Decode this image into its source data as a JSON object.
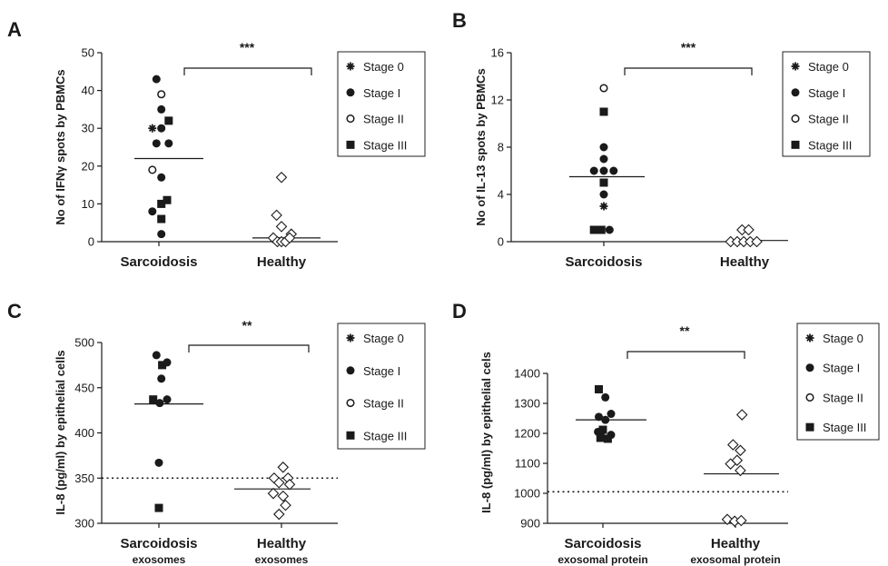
{
  "chart_data": [
    {
      "panel": "A",
      "type": "scatter",
      "ylabel": "No of IFNγ spots by PBMCs",
      "ylim": [
        0,
        50
      ],
      "yticks": [
        0,
        10,
        20,
        30,
        40,
        50
      ],
      "categories": [
        {
          "label": "Sarcoidosis",
          "sub": ""
        },
        {
          "label": "Healthy",
          "sub": ""
        }
      ],
      "significance": "***",
      "legend": [
        "Stage 0",
        "Stage I",
        "Stage II",
        "Stage III"
      ],
      "groups": [
        {
          "median": 22,
          "points": [
            {
              "stage": 1,
              "v": 43,
              "o": -0.3
            },
            {
              "stage": 2,
              "v": 39,
              "o": 0.3
            },
            {
              "stage": 1,
              "v": 35,
              "o": 0.3
            },
            {
              "stage": 3,
              "v": 32,
              "o": 1.2
            },
            {
              "stage": 0,
              "v": 30,
              "o": -0.8
            },
            {
              "stage": 1,
              "v": 30,
              "o": 0.3
            },
            {
              "stage": 1,
              "v": 26,
              "o": -0.3
            },
            {
              "stage": 1,
              "v": 26,
              "o": 1.2
            },
            {
              "stage": 2,
              "v": 19,
              "o": -0.8
            },
            {
              "stage": 1,
              "v": 17,
              "o": 0.3
            },
            {
              "stage": 3,
              "v": 11,
              "o": 1.0
            },
            {
              "stage": 3,
              "v": 10,
              "o": 0.3
            },
            {
              "stage": 1,
              "v": 8,
              "o": -0.8
            },
            {
              "stage": 3,
              "v": 6,
              "o": 0.3
            },
            {
              "stage": 1,
              "v": 2,
              "o": 0.3
            }
          ]
        },
        {
          "median": 1,
          "points": [
            {
              "stage": 4,
              "v": 17,
              "o": 0
            },
            {
              "stage": 4,
              "v": 7,
              "o": -0.6
            },
            {
              "stage": 4,
              "v": 4,
              "o": 0
            },
            {
              "stage": 4,
              "v": 2,
              "o": 1.2
            },
            {
              "stage": 4,
              "v": 1,
              "o": -1.0
            },
            {
              "stage": 4,
              "v": 0,
              "o": -0.5
            },
            {
              "stage": 4,
              "v": 0,
              "o": 0
            },
            {
              "stage": 4,
              "v": 0,
              "o": 0.5
            },
            {
              "stage": 4,
              "v": 1,
              "o": 1.0
            }
          ]
        }
      ]
    },
    {
      "panel": "B",
      "type": "scatter",
      "ylabel": "No of IL-13 spots by PBMCs",
      "ylim": [
        0,
        16
      ],
      "yticks": [
        0,
        4,
        8,
        12,
        16
      ],
      "categories": [
        {
          "label": "Sarcoidosis",
          "sub": ""
        },
        {
          "label": "Healthy",
          "sub": ""
        }
      ],
      "significance": "***",
      "legend": [
        "Stage 0",
        "Stage I",
        "Stage II",
        "Stage III"
      ],
      "groups": [
        {
          "median": 5.5,
          "points": [
            {
              "stage": 2,
              "v": 13,
              "o": 0
            },
            {
              "stage": 3,
              "v": 11,
              "o": 0
            },
            {
              "stage": 1,
              "v": 8,
              "o": 0
            },
            {
              "stage": 1,
              "v": 7,
              "o": 0
            },
            {
              "stage": 1,
              "v": 6,
              "o": -1.2
            },
            {
              "stage": 1,
              "v": 6,
              "o": 0
            },
            {
              "stage": 1,
              "v": 6,
              "o": 1.2
            },
            {
              "stage": 3,
              "v": 5,
              "o": 0
            },
            {
              "stage": 1,
              "v": 4,
              "o": 0
            },
            {
              "stage": 0,
              "v": 3,
              "o": 0
            },
            {
              "stage": 3,
              "v": 1,
              "o": -1.2
            },
            {
              "stage": 3,
              "v": 1,
              "o": -0.3
            },
            {
              "stage": 1,
              "v": 1,
              "o": 0.7
            }
          ]
        },
        {
          "median": 0.1,
          "points": [
            {
              "stage": 4,
              "v": 1,
              "o": -0.3
            },
            {
              "stage": 4,
              "v": 1,
              "o": 0.5
            },
            {
              "stage": 4,
              "v": 0,
              "o": -1.7
            },
            {
              "stage": 4,
              "v": 0,
              "o": -0.9
            },
            {
              "stage": 4,
              "v": 0,
              "o": -0.1
            },
            {
              "stage": 4,
              "v": 0,
              "o": 0.7
            },
            {
              "stage": 4,
              "v": 0,
              "o": 1.5
            }
          ]
        }
      ]
    },
    {
      "panel": "C",
      "type": "scatter",
      "ylabel": "IL-8 (pg/ml) by epithelial cells",
      "ylim": [
        300,
        500
      ],
      "yticks": [
        300,
        350,
        400,
        450,
        500
      ],
      "dotted": 350,
      "categories": [
        {
          "label": "Sarcoidosis",
          "sub": "exosomes"
        },
        {
          "label": "Healthy",
          "sub": "exosomes"
        }
      ],
      "significance": "**",
      "legend": [
        "Stage 0",
        "Stage I",
        "Stage II",
        "Stage III"
      ],
      "groups": [
        {
          "median": 432,
          "points": [
            {
              "stage": 1,
              "v": 486,
              "o": -0.3
            },
            {
              "stage": 1,
              "v": 478,
              "o": 1.0
            },
            {
              "stage": 3,
              "v": 475,
              "o": 0.4
            },
            {
              "stage": 1,
              "v": 460,
              "o": 0.3
            },
            {
              "stage": 3,
              "v": 437,
              "o": -0.7
            },
            {
              "stage": 1,
              "v": 433,
              "o": 0.1
            },
            {
              "stage": 1,
              "v": 437,
              "o": 1.0
            },
            {
              "stage": 1,
              "v": 367,
              "o": 0
            },
            {
              "stage": 3,
              "v": 317,
              "o": 0
            }
          ]
        },
        {
          "median": 338,
          "points": [
            {
              "stage": 4,
              "v": 362,
              "o": 0.2
            },
            {
              "stage": 4,
              "v": 350,
              "o": -0.9
            },
            {
              "stage": 4,
              "v": 350,
              "o": 0.8
            },
            {
              "stage": 4,
              "v": 345,
              "o": -0.3
            },
            {
              "stage": 4,
              "v": 343,
              "o": 1.0
            },
            {
              "stage": 4,
              "v": 333,
              "o": -1.0
            },
            {
              "stage": 4,
              "v": 330,
              "o": 0.2
            },
            {
              "stage": 4,
              "v": 320,
              "o": 0.5
            },
            {
              "stage": 4,
              "v": 310,
              "o": -0.3
            }
          ]
        }
      ]
    },
    {
      "panel": "D",
      "type": "scatter",
      "ylabel": "IL-8 (pg/ml) by epithelial cels",
      "ylim": [
        900,
        1400
      ],
      "yticks": [
        900,
        1000,
        1100,
        1200,
        1300,
        1400
      ],
      "dotted": 1005,
      "categories": [
        {
          "label": "Sarcoidosis",
          "sub": "exosomal protein"
        },
        {
          "label": "Healthy",
          "sub": "exosomal protein"
        }
      ],
      "significance": "**",
      "legend": [
        "Stage 0",
        "Stage I",
        "Stage II",
        "Stage III"
      ],
      "groups": [
        {
          "median": 1245,
          "points": [
            {
              "stage": 3,
              "v": 1347,
              "o": -0.5
            },
            {
              "stage": 1,
              "v": 1320,
              "o": 0.3
            },
            {
              "stage": 1,
              "v": 1265,
              "o": 1.0
            },
            {
              "stage": 1,
              "v": 1255,
              "o": -0.5
            },
            {
              "stage": 1,
              "v": 1245,
              "o": 0.3
            },
            {
              "stage": 3,
              "v": 1212,
              "o": 0
            },
            {
              "stage": 1,
              "v": 1205,
              "o": -0.6
            },
            {
              "stage": 1,
              "v": 1195,
              "o": 1.0
            },
            {
              "stage": 3,
              "v": 1185,
              "o": -0.3
            },
            {
              "stage": 3,
              "v": 1182,
              "o": 0.6
            }
          ]
        },
        {
          "median": 1065,
          "points": [
            {
              "stage": 4,
              "v": 1262,
              "o": 0.8
            },
            {
              "stage": 4,
              "v": 1162,
              "o": -0.3
            },
            {
              "stage": 4,
              "v": 1143,
              "o": 0.6
            },
            {
              "stage": 4,
              "v": 1110,
              "o": 0.2
            },
            {
              "stage": 4,
              "v": 1098,
              "o": -0.6
            },
            {
              "stage": 4,
              "v": 1076,
              "o": 0.6
            },
            {
              "stage": 4,
              "v": 913,
              "o": -1.0
            },
            {
              "stage": 4,
              "v": 907,
              "o": -0.1
            },
            {
              "stage": 4,
              "v": 909,
              "o": 0.7
            }
          ]
        }
      ]
    }
  ]
}
